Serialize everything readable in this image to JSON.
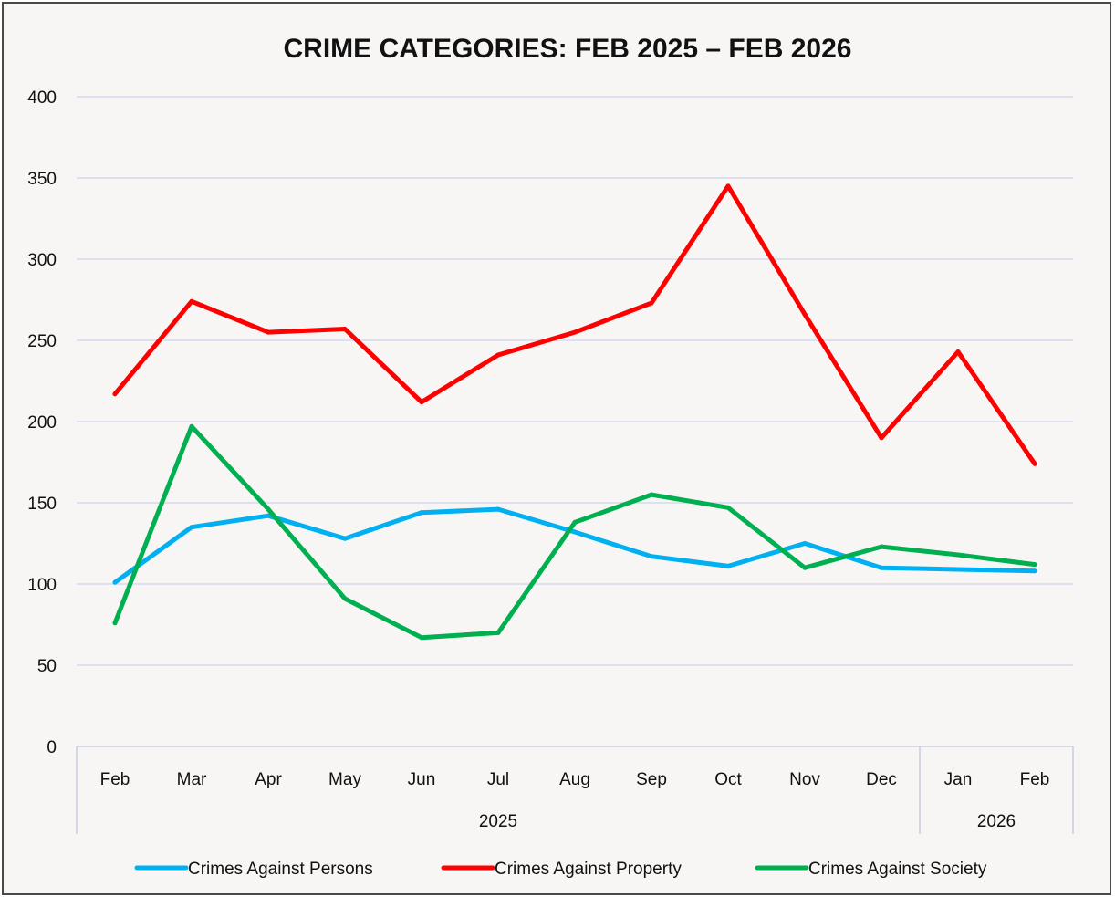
{
  "chart_data": {
    "type": "line",
    "title": "CRIME CATEGORIES: FEB 2025 – FEB 2026",
    "xlabel": "",
    "ylabel": "",
    "categories": [
      "Feb",
      "Mar",
      "Apr",
      "May",
      "Jun",
      "Jul",
      "Aug",
      "Sep",
      "Oct",
      "Nov",
      "Dec",
      "Jan",
      "Feb"
    ],
    "year_groups": [
      {
        "label": "2025",
        "count": 11
      },
      {
        "label": "2026",
        "count": 2
      }
    ],
    "ylim": [
      0,
      400
    ],
    "yticks": [
      0,
      50,
      100,
      150,
      200,
      250,
      300,
      350,
      400
    ],
    "grid": true,
    "legend_position": "bottom",
    "series": [
      {
        "name": "Crimes Against Persons",
        "color": "#00b0f0",
        "values": [
          101,
          135,
          142,
          128,
          144,
          146,
          132,
          117,
          111,
          125,
          110,
          109,
          108
        ]
      },
      {
        "name": "Crimes Against Property",
        "color": "#ff0000",
        "values": [
          217,
          274,
          255,
          257,
          212,
          241,
          255,
          273,
          345,
          266,
          190,
          243,
          174
        ]
      },
      {
        "name": "Crimes Against Society",
        "color": "#00b050",
        "values": [
          76,
          197,
          146,
          91,
          67,
          70,
          138,
          155,
          147,
          110,
          123,
          118,
          112
        ]
      }
    ]
  }
}
